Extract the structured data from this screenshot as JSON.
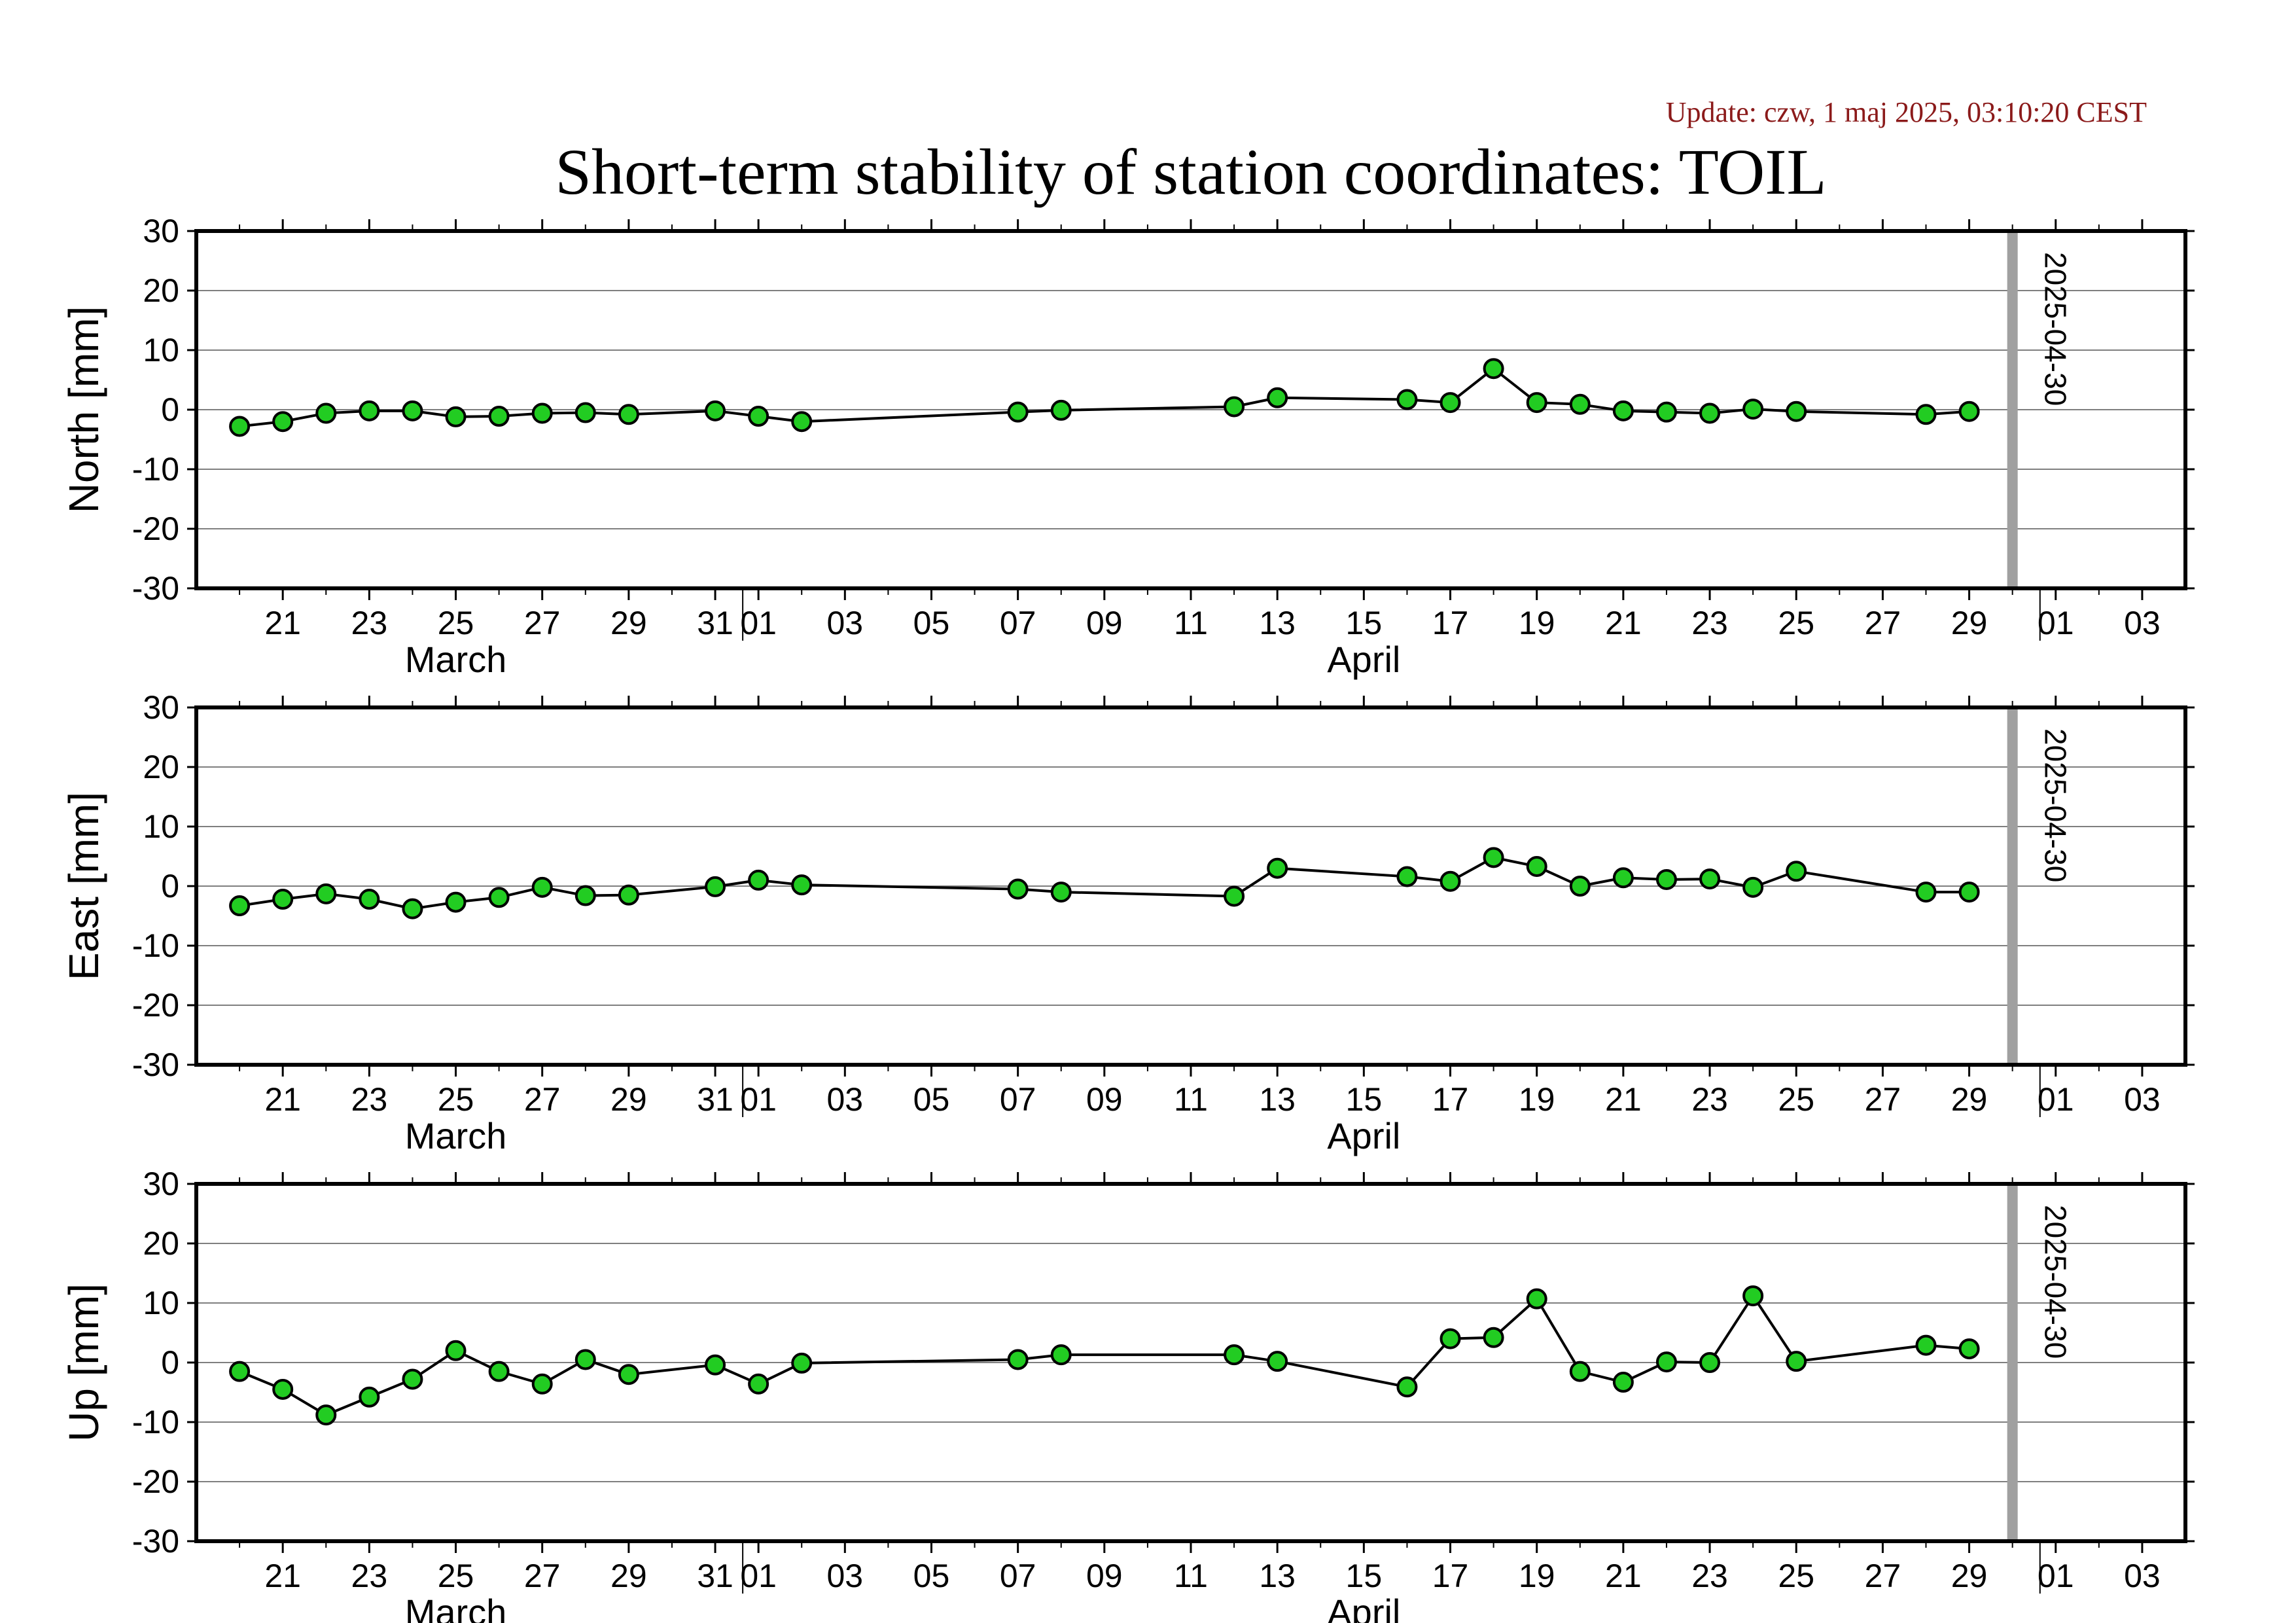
{
  "update_text": "Update: czw, 1 maj 2025, 03:10:20 CEST",
  "title": "Short-term stability of station coordinates: TOIL",
  "colors": {
    "marker_fill": "#22cc22",
    "marker_stroke": "#000000",
    "line": "#000000",
    "grid": "#7f7f7f",
    "current_date_line": "#a0a0a0",
    "update_text": "#8b1a1a"
  },
  "chart_data": {
    "type": "line",
    "x_axis": {
      "start": "2025-03-19",
      "end": "2025-05-04",
      "tick_labels": [
        {
          "date": "2025-03-21",
          "label": "21"
        },
        {
          "date": "2025-03-23",
          "label": "23"
        },
        {
          "date": "2025-03-25",
          "label": "25"
        },
        {
          "date": "2025-03-27",
          "label": "27"
        },
        {
          "date": "2025-03-29",
          "label": "29"
        },
        {
          "date": "2025-03-31",
          "label": "31"
        },
        {
          "date": "2025-04-01",
          "label": "01"
        },
        {
          "date": "2025-04-03",
          "label": "03"
        },
        {
          "date": "2025-04-05",
          "label": "05"
        },
        {
          "date": "2025-04-07",
          "label": "07"
        },
        {
          "date": "2025-04-09",
          "label": "09"
        },
        {
          "date": "2025-04-11",
          "label": "11"
        },
        {
          "date": "2025-04-13",
          "label": "13"
        },
        {
          "date": "2025-04-15",
          "label": "15"
        },
        {
          "date": "2025-04-17",
          "label": "17"
        },
        {
          "date": "2025-04-19",
          "label": "19"
        },
        {
          "date": "2025-04-21",
          "label": "21"
        },
        {
          "date": "2025-04-23",
          "label": "23"
        },
        {
          "date": "2025-04-25",
          "label": "25"
        },
        {
          "date": "2025-04-27",
          "label": "27"
        },
        {
          "date": "2025-04-29",
          "label": "29"
        },
        {
          "date": "2025-05-01",
          "label": "01"
        },
        {
          "date": "2025-05-03",
          "label": "03"
        }
      ],
      "months": [
        {
          "label": "March",
          "center_date": "2025-03-25"
        },
        {
          "label": "April",
          "center_date": "2025-04-15"
        }
      ],
      "month_boundaries": [
        "2025-04-01",
        "2025-05-01"
      ]
    },
    "current_date": "2025-04-30",
    "current_date_label": "2025-04-30",
    "ylim": [
      -30,
      30
    ],
    "yticks": [
      30,
      20,
      10,
      0,
      -10,
      -20,
      -30
    ],
    "grid": true,
    "panels": [
      {
        "ylabel": "North [mm]",
        "points": [
          [
            "2025-03-20",
            -2.8
          ],
          [
            "2025-03-21",
            -2.0
          ],
          [
            "2025-03-22",
            -0.6
          ],
          [
            "2025-03-23",
            -0.2
          ],
          [
            "2025-03-24",
            -0.2
          ],
          [
            "2025-03-25",
            -1.2
          ],
          [
            "2025-03-26",
            -1.1
          ],
          [
            "2025-03-27",
            -0.6
          ],
          [
            "2025-03-28",
            -0.5
          ],
          [
            "2025-03-29",
            -0.8
          ],
          [
            "2025-03-31",
            -0.2
          ],
          [
            "2025-04-01",
            -1.1
          ],
          [
            "2025-04-02",
            -2.0
          ],
          [
            "2025-04-07",
            -0.4
          ],
          [
            "2025-04-08",
            -0.1
          ],
          [
            "2025-04-12",
            0.5
          ],
          [
            "2025-04-13",
            2.0
          ],
          [
            "2025-04-16",
            1.7
          ],
          [
            "2025-04-17",
            1.2
          ],
          [
            "2025-04-18",
            6.9
          ],
          [
            "2025-04-19",
            1.2
          ],
          [
            "2025-04-20",
            0.9
          ],
          [
            "2025-04-21",
            -0.2
          ],
          [
            "2025-04-22",
            -0.4
          ],
          [
            "2025-04-23",
            -0.6
          ],
          [
            "2025-04-24",
            0.1
          ],
          [
            "2025-04-25",
            -0.3
          ],
          [
            "2025-04-28",
            -0.8
          ],
          [
            "2025-04-29",
            -0.3
          ]
        ]
      },
      {
        "ylabel": "East [mm]",
        "points": [
          [
            "2025-03-20",
            -3.3
          ],
          [
            "2025-03-21",
            -2.2
          ],
          [
            "2025-03-22",
            -1.3
          ],
          [
            "2025-03-23",
            -2.2
          ],
          [
            "2025-03-24",
            -3.8
          ],
          [
            "2025-03-25",
            -2.7
          ],
          [
            "2025-03-26",
            -1.9
          ],
          [
            "2025-03-27",
            -0.2
          ],
          [
            "2025-03-28",
            -1.6
          ],
          [
            "2025-03-29",
            -1.5
          ],
          [
            "2025-03-31",
            -0.1
          ],
          [
            "2025-04-01",
            1.0
          ],
          [
            "2025-04-02",
            0.2
          ],
          [
            "2025-04-07",
            -0.5
          ],
          [
            "2025-04-08",
            -1.0
          ],
          [
            "2025-04-12",
            -1.7
          ],
          [
            "2025-04-13",
            3.0
          ],
          [
            "2025-04-16",
            1.6
          ],
          [
            "2025-04-17",
            0.8
          ],
          [
            "2025-04-18",
            4.8
          ],
          [
            "2025-04-19",
            3.3
          ],
          [
            "2025-04-20",
            0.0
          ],
          [
            "2025-04-21",
            1.4
          ],
          [
            "2025-04-22",
            1.1
          ],
          [
            "2025-04-23",
            1.2
          ],
          [
            "2025-04-24",
            -0.2
          ],
          [
            "2025-04-25",
            2.5
          ],
          [
            "2025-04-28",
            -1.0
          ],
          [
            "2025-04-29",
            -1.0
          ]
        ]
      },
      {
        "ylabel": "Up [mm]",
        "points": [
          [
            "2025-03-20",
            -1.5
          ],
          [
            "2025-03-21",
            -4.5
          ],
          [
            "2025-03-22",
            -8.8
          ],
          [
            "2025-03-23",
            -5.8
          ],
          [
            "2025-03-24",
            -2.8
          ],
          [
            "2025-03-25",
            2.0
          ],
          [
            "2025-03-26",
            -1.5
          ],
          [
            "2025-03-27",
            -3.6
          ],
          [
            "2025-03-28",
            0.5
          ],
          [
            "2025-03-29",
            -2.0
          ],
          [
            "2025-03-31",
            -0.4
          ],
          [
            "2025-04-01",
            -3.6
          ],
          [
            "2025-04-02",
            -0.1
          ],
          [
            "2025-04-07",
            0.5
          ],
          [
            "2025-04-08",
            1.3
          ],
          [
            "2025-04-12",
            1.3
          ],
          [
            "2025-04-13",
            0.2
          ],
          [
            "2025-04-16",
            -4.1
          ],
          [
            "2025-04-17",
            4.0
          ],
          [
            "2025-04-18",
            4.2
          ],
          [
            "2025-04-19",
            10.7
          ],
          [
            "2025-04-20",
            -1.5
          ],
          [
            "2025-04-21",
            -3.3
          ],
          [
            "2025-04-22",
            0.1
          ],
          [
            "2025-04-23",
            0.0
          ],
          [
            "2025-04-24",
            11.2
          ],
          [
            "2025-04-25",
            0.2
          ],
          [
            "2025-04-28",
            2.9
          ],
          [
            "2025-04-29",
            2.3
          ]
        ]
      }
    ]
  }
}
